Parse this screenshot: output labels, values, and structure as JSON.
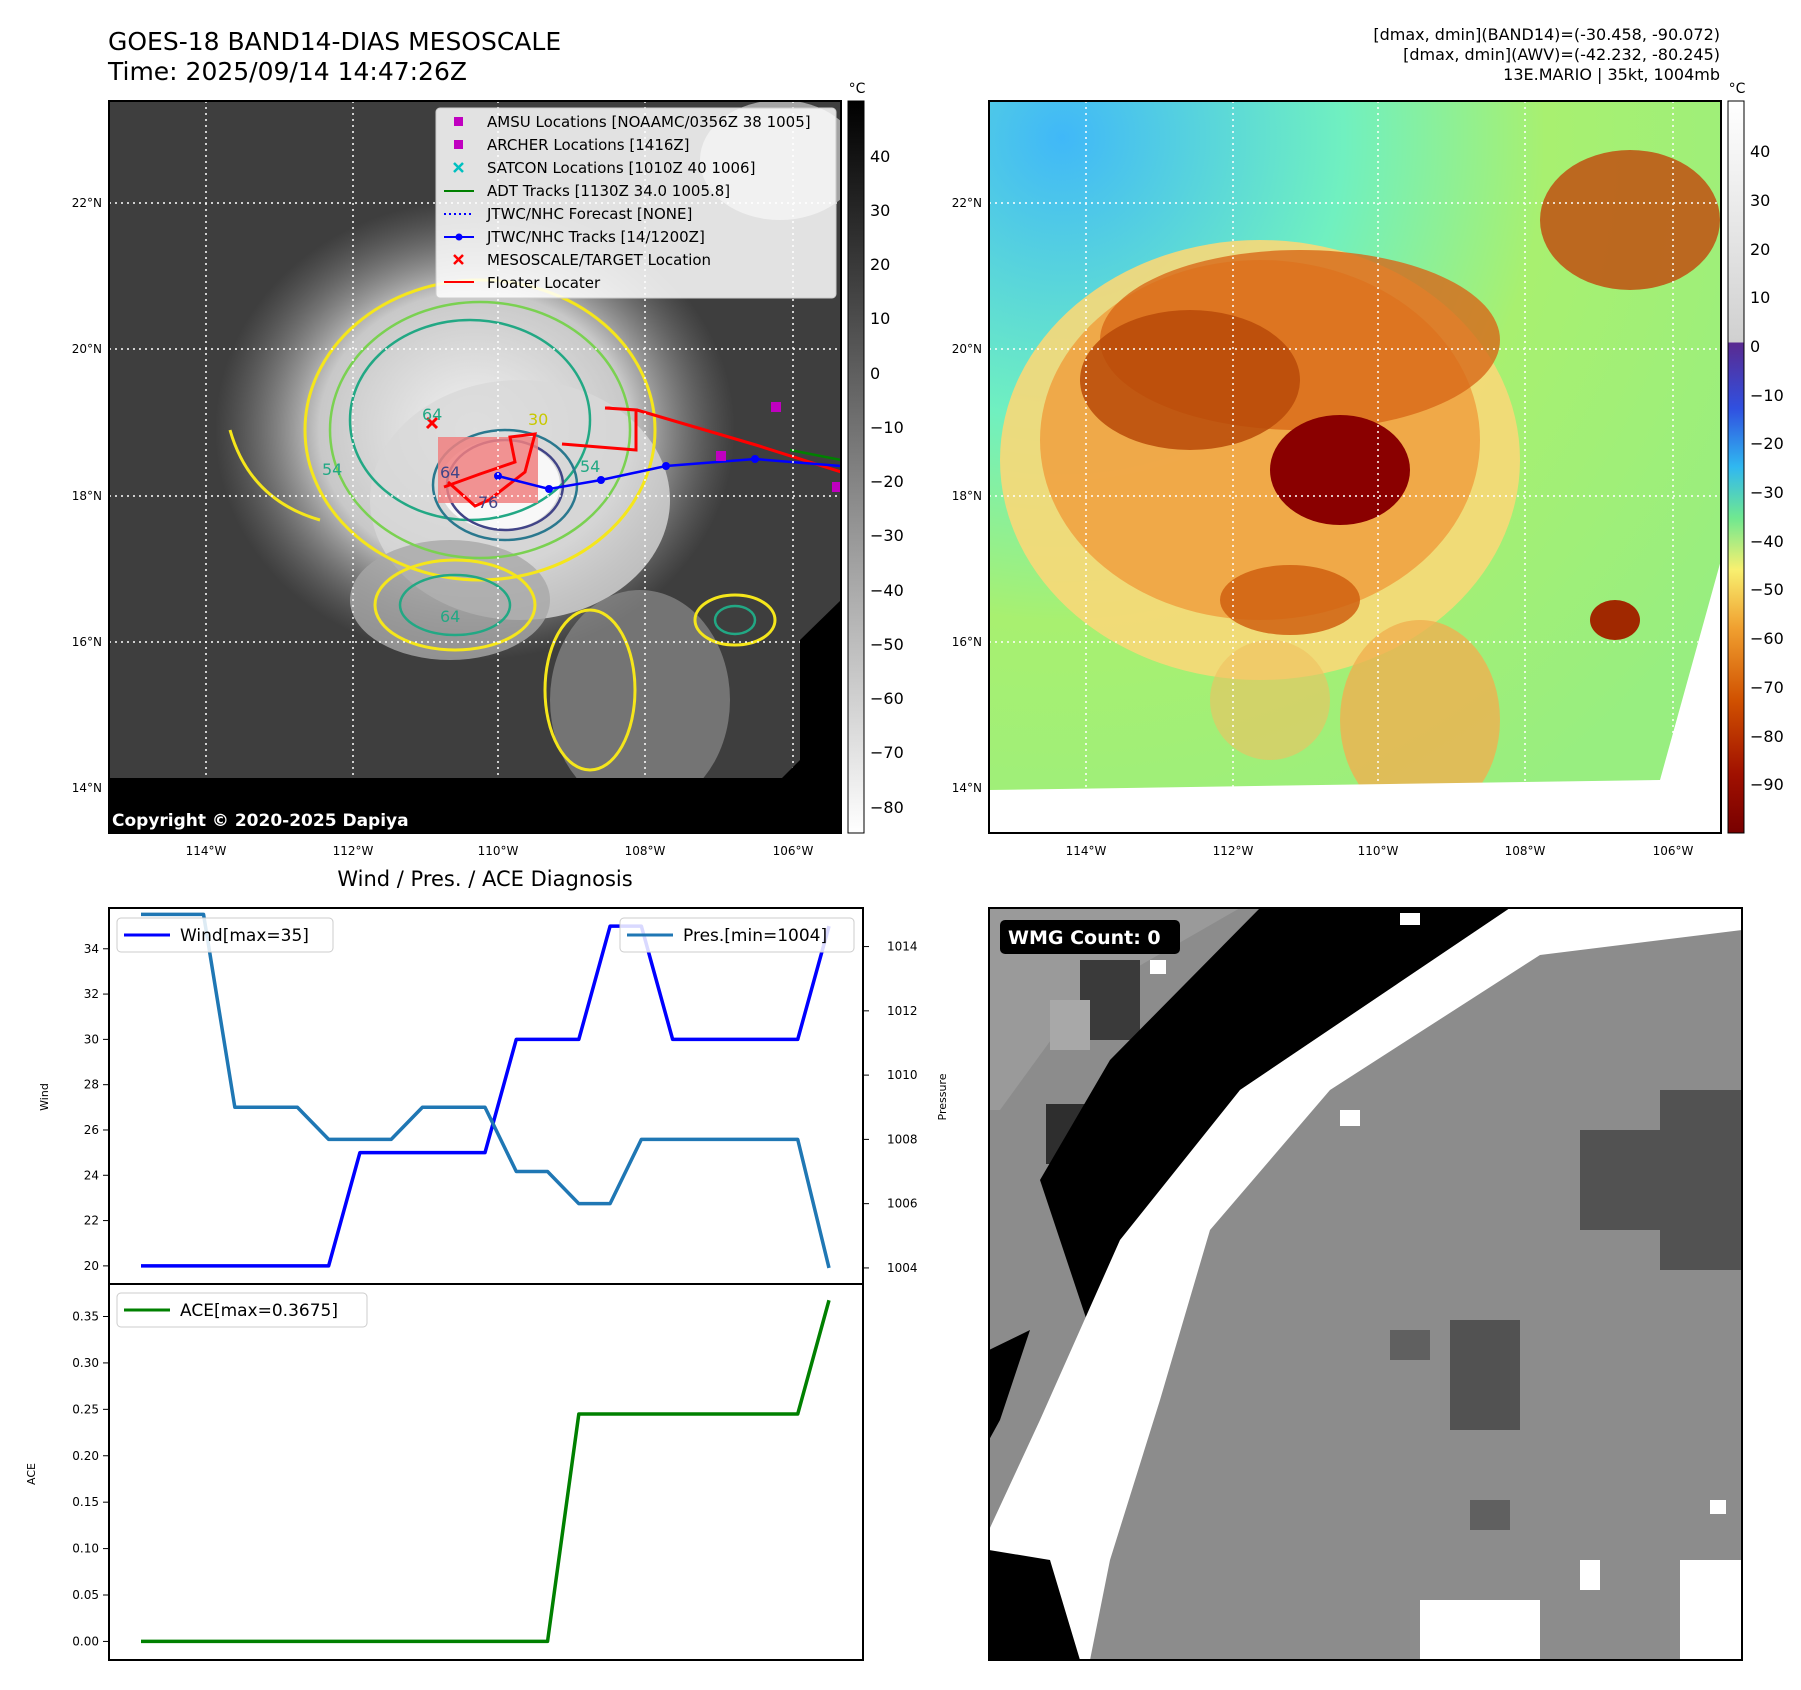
{
  "header": {
    "title_line1": "GOES-18 BAND14-DIAS MESOSCALE",
    "title_line2": "Time: 2025/09/14 14:47:26Z",
    "info_line1": "[dmax, dmin](BAND14)=(-30.458, -90.072)",
    "info_line2": "[dmax, dmin](AWV)=(-42.232, -80.245)",
    "info_line3": "13E.MARIO | 35kt, 1004mb"
  },
  "maps": {
    "lon_labels": [
      "114°W",
      "112°W",
      "110°W",
      "108°W",
      "106°W"
    ],
    "lat_labels": [
      "22°N",
      "20°N",
      "18°N",
      "16°N",
      "14°N"
    ],
    "copyright": "Copyright © 2020-2025 Dapiya",
    "unit": "°C",
    "left_colorbar_ticks": [
      "40",
      "30",
      "20",
      "10",
      "0",
      "−10",
      "−20",
      "−30",
      "−40",
      "−50",
      "−60",
      "−70",
      "−80"
    ],
    "right_colorbar_ticks": [
      "40",
      "30",
      "20",
      "10",
      "0",
      "−10",
      "−20",
      "−30",
      "−40",
      "−50",
      "−60",
      "−70",
      "−80",
      "−90"
    ],
    "contour_labels": [
      "64",
      "54",
      "30",
      "54",
      "64",
      "76",
      "64"
    ],
    "legend": [
      {
        "label": "AMSU Locations [NOAAMC/0356Z 38 1005]",
        "color": "#c000c0",
        "marker": "square"
      },
      {
        "label": "ARCHER Locations [1416Z]",
        "color": "#c000c0",
        "marker": "square"
      },
      {
        "label": "SATCON Locations [1010Z 40 1006]",
        "color": "#00c0c0",
        "marker": "x"
      },
      {
        "label": "ADT Tracks [1130Z 34.0 1005.8]",
        "color": "#008000",
        "marker": "line"
      },
      {
        "label": "JTWC/NHC Forecast [NONE]",
        "color": "#0000ff",
        "marker": "dotted"
      },
      {
        "label": "JTWC/NHC Tracks [14/1200Z]",
        "color": "#0000ff",
        "marker": "line-dot"
      },
      {
        "label": "MESOSCALE/TARGET Location",
        "color": "#ff0000",
        "marker": "x"
      },
      {
        "label": "Floater Locater",
        "color": "#ff0000",
        "marker": "line"
      }
    ]
  },
  "wmg": {
    "label": "WMG Count: 0"
  },
  "chart_data": [
    {
      "type": "line",
      "title": "Wind / Pres. / ACE Diagnosis",
      "x": [
        0,
        1,
        2,
        3,
        4,
        5,
        6,
        7,
        8,
        9,
        10,
        11,
        12,
        13,
        14,
        15,
        16,
        17,
        18,
        19,
        20,
        21,
        22
      ],
      "ylabel": "Wind",
      "ylim": [
        19.2,
        35.8
      ],
      "yticks": [
        20,
        22,
        24,
        26,
        28,
        30,
        32,
        34
      ],
      "y2label": "Pressure",
      "y2lim": [
        1003.5,
        1015.2
      ],
      "y2ticks": [
        1004,
        1006,
        1008,
        1010,
        1012,
        1014
      ],
      "series": [
        {
          "name": "Wind[max=35]",
          "axis": "left",
          "color": "#0000ff",
          "values": [
            20,
            20,
            20,
            20,
            20,
            20,
            20,
            25,
            25,
            25,
            25,
            25,
            30,
            30,
            30,
            35,
            35,
            30,
            30,
            30,
            30,
            30,
            35
          ]
        },
        {
          "name": "Pres.[min=1004]",
          "axis": "right",
          "color": "#1f77b4",
          "values": [
            1015,
            1015,
            1015,
            1009,
            1009,
            1009,
            1008,
            1008,
            1008,
            1009,
            1009,
            1009,
            1007,
            1007,
            1006,
            1006,
            1008,
            1008,
            1008,
            1008,
            1008,
            1008,
            1004
          ]
        }
      ]
    },
    {
      "type": "line",
      "x": [
        0,
        1,
        2,
        3,
        4,
        5,
        6,
        7,
        8,
        9,
        10,
        11,
        12,
        13,
        14,
        15,
        16,
        17,
        18,
        19,
        20,
        21,
        22
      ],
      "ylabel": "ACE",
      "ylim": [
        -0.02,
        0.385
      ],
      "yticks": [
        "0.00",
        "0.05",
        "0.10",
        "0.15",
        "0.20",
        "0.25",
        "0.30",
        "0.35"
      ],
      "series": [
        {
          "name": "ACE[max=0.3675]",
          "color": "#008000",
          "values": [
            0,
            0,
            0,
            0,
            0,
            0,
            0,
            0,
            0,
            0,
            0,
            0,
            0,
            0,
            0.245,
            0.245,
            0.245,
            0.245,
            0.245,
            0.245,
            0.245,
            0.245,
            0.3675
          ]
        }
      ]
    }
  ]
}
